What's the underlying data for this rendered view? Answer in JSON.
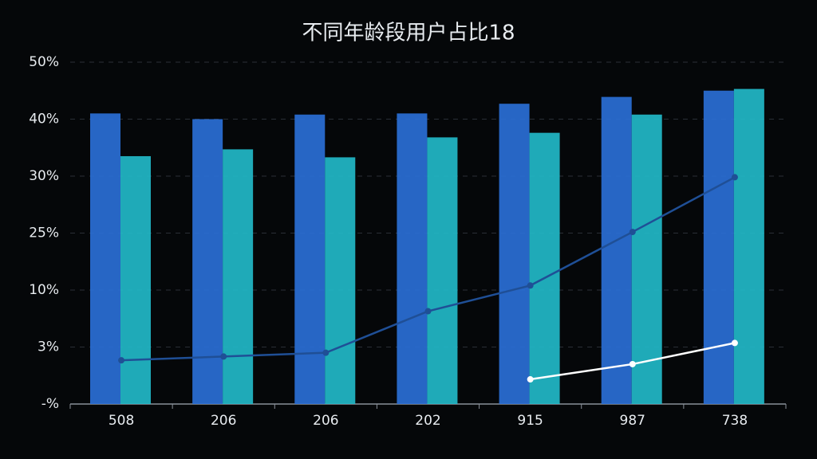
{
  "chart_data": {
    "type": "bar",
    "title": "不同年龄段用户占比18",
    "categories": [
      "508",
      "206",
      "206",
      "202",
      "915",
      "987",
      "738"
    ],
    "series": [
      {
        "type": "bar",
        "color": "#2a6fd6",
        "values": [
          41,
          40,
          40.8,
          41,
          42.7,
          43.9,
          45
        ]
      },
      {
        "type": "bar",
        "color": "#22b8c8",
        "values": [
          33.5,
          34.7,
          33.3,
          36.8,
          37.6,
          40.8,
          45.3
        ]
      },
      {
        "type": "line",
        "color": "#1f4f96",
        "values": [
          2.3,
          2.5,
          2.7,
          7.4,
          11.2,
          25.1,
          29.9
        ]
      },
      {
        "type": "line",
        "color": "#ffffff",
        "values": [
          null,
          null,
          null,
          null,
          1.3,
          2.1,
          3.5
        ]
      }
    ],
    "ylim": [
      0,
      50
    ],
    "yticks": [
      {
        "value": 0,
        "label": "-%"
      },
      {
        "value": 3,
        "label": "3%"
      },
      {
        "value": 10,
        "label": "10%"
      },
      {
        "value": 25,
        "label": "25%"
      },
      {
        "value": 30,
        "label": "30%"
      },
      {
        "value": 40,
        "label": "40%"
      },
      {
        "value": 50,
        "label": "50%"
      }
    ],
    "grid": true
  }
}
